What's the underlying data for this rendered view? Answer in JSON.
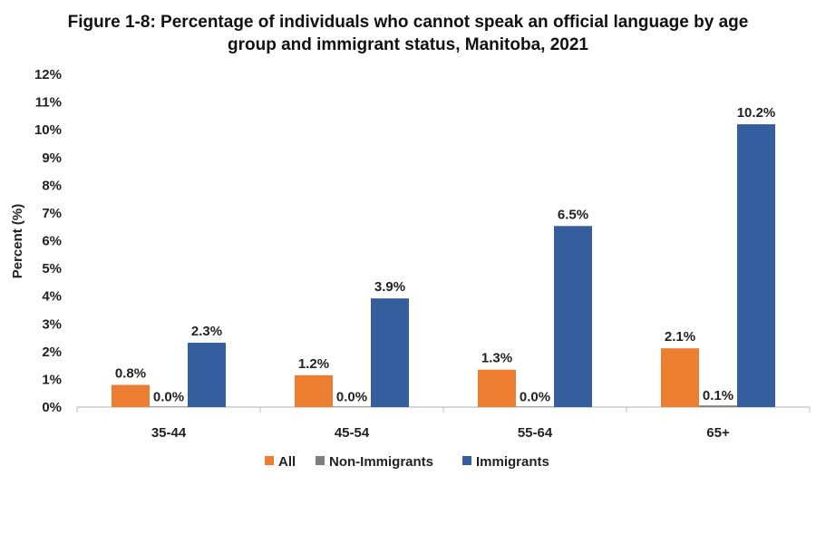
{
  "chart_data": {
    "type": "bar",
    "title_line1": "Figure 1-8: Percentage of individuals who cannot speak an official language by age",
    "title_line2": "group and immigrant status, Manitoba, 2021",
    "xlabel": "",
    "ylabel": "Percent (%)",
    "ylim": [
      0,
      12
    ],
    "yticks": [
      "0%",
      "1%",
      "2%",
      "3%",
      "4%",
      "5%",
      "6%",
      "7%",
      "8%",
      "9%",
      "10%",
      "11%",
      "12%"
    ],
    "categories": [
      "35-44",
      "45-54",
      "55-64",
      "65+"
    ],
    "series": [
      {
        "name": "All",
        "color": "#ED7D31",
        "values": [
          0.8,
          1.15,
          1.35,
          2.12
        ],
        "labels": [
          "0.8%",
          "1.2%",
          "1.3%",
          "2.1%"
        ]
      },
      {
        "name": "Non-Immigrants",
        "color": "#7F7F7F",
        "values": [
          0.02,
          0.02,
          0.02,
          0.06
        ],
        "labels": [
          "0.0%",
          "0.0%",
          "0.0%",
          "0.1%"
        ]
      },
      {
        "name": "Immigrants",
        "color": "#355E9E",
        "values": [
          2.32,
          3.92,
          6.53,
          10.2
        ],
        "labels": [
          "2.3%",
          "3.9%",
          "6.5%",
          "10.2%"
        ]
      }
    ],
    "legend": "bottom",
    "grid": false
  }
}
